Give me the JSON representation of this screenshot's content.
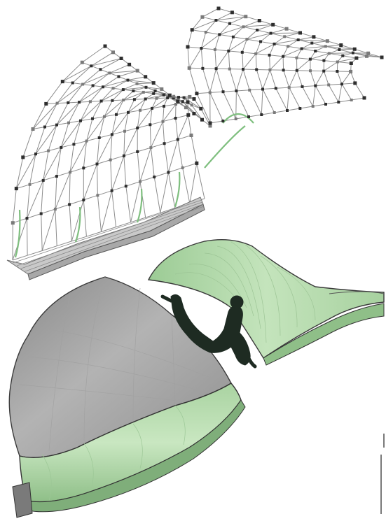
{
  "figure": {
    "panels": [
      {
        "view": "wireframe",
        "label": ""
      },
      {
        "view": "shaded-surface",
        "label": ""
      }
    ],
    "colors": {
      "background": "#ffffff",
      "wire": "#8c8c8c",
      "node": "#2e2e2e",
      "node_light": "#7a7a7a",
      "grey_surface": "#9e9e9e",
      "grey_surface_dark": "#6f6f6f",
      "green_surface": "#b8ddb0",
      "green_surface_light": "#d2ecca",
      "green_surface_dark": "#7fae7a",
      "figure_silhouette": "#1e2b22",
      "outline": "#2c2c2c"
    }
  }
}
